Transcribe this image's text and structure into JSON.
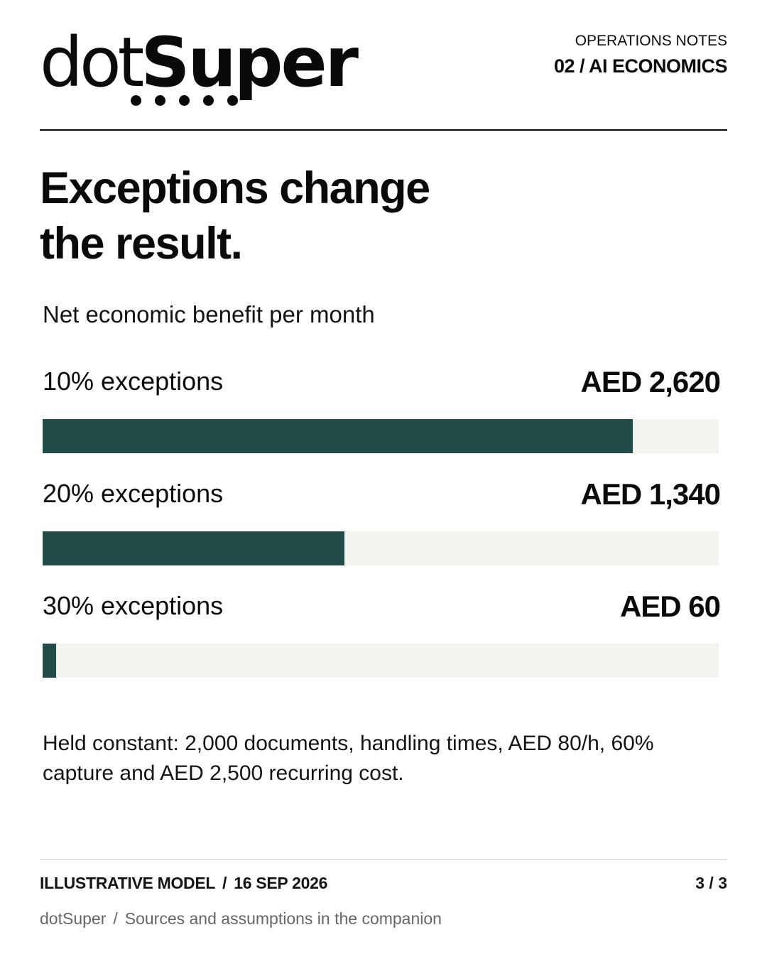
{
  "brand": {
    "logo_light": "dot",
    "logo_bold": "Super",
    "dots_icon": "five-dots"
  },
  "header": {
    "series_label": "OPERATIONS NOTES",
    "series_number": "02 / AI ECONOMICS"
  },
  "title_lines": [
    "Exceptions change",
    "the result."
  ],
  "colors": {
    "bar_fill": "#224b47",
    "bar_track": "#f3f3ef",
    "text": "#0a0a0a"
  },
  "chart_data": {
    "type": "bar",
    "orientation": "horizontal",
    "title": "Net economic benefit per month",
    "categories": [
      "10% exceptions",
      "20% exceptions",
      "30% exceptions"
    ],
    "values": [
      2620,
      1340,
      60
    ],
    "value_labels": [
      "AED 2,620",
      "AED 1,340",
      "AED 60"
    ],
    "unit": "AED",
    "xlim": [
      0,
      3000
    ],
    "grid": false,
    "legend": "none"
  },
  "note": "Held constant: 2,000 documents, handling times, AED 80/h, 60% capture and AED 2,500 recurring cost.",
  "footer": {
    "model_label": "ILLUSTRATIVE MODEL",
    "separator": "/",
    "date": "16 SEP 2026",
    "page": "3 / 3",
    "brand_name": "dotSuper",
    "sources": "Sources and assumptions in the companion"
  }
}
